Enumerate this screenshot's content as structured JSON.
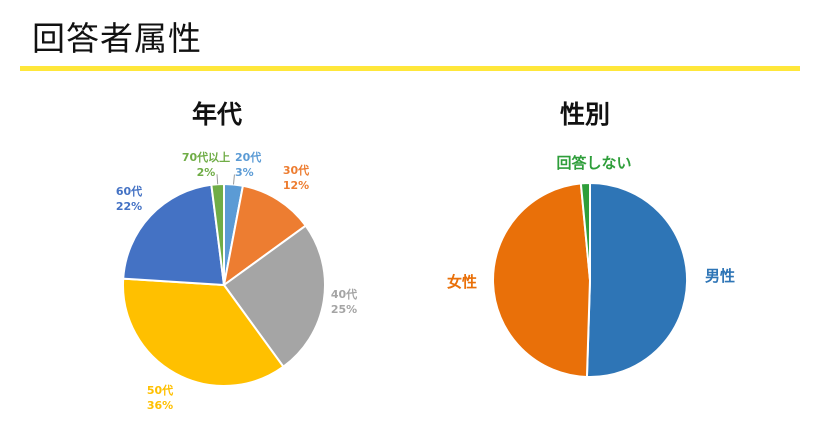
{
  "page": {
    "title": "回答者属性"
  },
  "chart_data": [
    {
      "type": "pie",
      "title": "年代",
      "slices": [
        {
          "label": "20代",
          "value": 3,
          "value_label": "3%",
          "color": "#5B9BD5"
        },
        {
          "label": "30代",
          "value": 12,
          "value_label": "12%",
          "color": "#ED7D31"
        },
        {
          "label": "40代",
          "value": 25,
          "value_label": "25%",
          "color": "#A5A5A5"
        },
        {
          "label": "50代",
          "value": 36,
          "value_label": "36%",
          "color": "#FFC000"
        },
        {
          "label": "60代",
          "value": 22,
          "value_label": "22%",
          "color": "#4472C4"
        },
        {
          "label": "70代以上",
          "value": 2,
          "value_label": "2%",
          "color": "#70AD47"
        }
      ]
    },
    {
      "type": "pie",
      "title": "性別",
      "slices": [
        {
          "label": "男性",
          "value": 50.5,
          "color": "#2E75B6"
        },
        {
          "label": "女性",
          "value": 48,
          "color": "#E97009"
        },
        {
          "label": "回答しない",
          "value": 1.5,
          "color": "#2E9E3A"
        }
      ]
    }
  ]
}
